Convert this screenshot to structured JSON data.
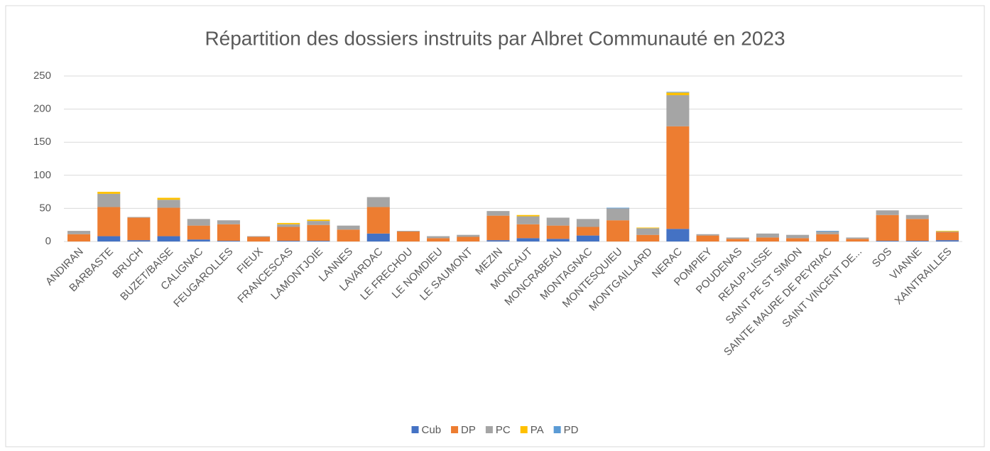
{
  "chart_data": {
    "type": "stacked_bar",
    "title": "Répartition des dossiers instruits par Albret Communauté en 2023",
    "categories": [
      "ANDIRAN",
      "BARBASTE",
      "BRUCH",
      "BUZET/BAISE",
      "CALIGNAC",
      "FEUGAROLLES",
      "FIEUX",
      "FRANCESCAS",
      "LAMONTJOIE",
      "LANNES",
      "LAVARDAC",
      "LE FRECHOU",
      "LE NOMDIEU",
      "LE SAUMONT",
      "MEZIN",
      "MONCAUT",
      "MONCRABEAU",
      "MONTAGNAC",
      "MONTESQUIEU",
      "MONTGAILLARD",
      "NERAC",
      "POMPIEY",
      "POUDENAS",
      "REAUP-LISSE",
      "SAINT PE ST SIMON",
      "SAINTE MAURE DE PEYRIAC",
      "SAINT VINCENT DE...",
      "SOS",
      "VIANNE",
      "XAINTRAILLES"
    ],
    "series": [
      {
        "name": "Cub",
        "color": "#4472c4",
        "values": [
          0,
          8,
          2,
          8,
          3,
          1,
          0,
          1,
          1,
          0,
          12,
          0,
          0,
          0,
          2,
          5,
          4,
          9,
          0,
          0,
          19,
          0,
          0,
          0,
          0,
          0,
          0,
          1,
          1,
          2
        ]
      },
      {
        "name": "DP",
        "color": "#ed7d31",
        "values": [
          11,
          44,
          34,
          43,
          21,
          25,
          7,
          21,
          24,
          18,
          40,
          15,
          5,
          7,
          37,
          21,
          20,
          13,
          32,
          10,
          155,
          9,
          4,
          6,
          5,
          11,
          4,
          39,
          33,
          12
        ]
      },
      {
        "name": "PC",
        "color": "#a5a5a5",
        "values": [
          5,
          20,
          1,
          12,
          10,
          6,
          1,
          4,
          6,
          6,
          15,
          1,
          3,
          3,
          7,
          12,
          12,
          12,
          18,
          10,
          47,
          2,
          2,
          6,
          5,
          4,
          2,
          7,
          6,
          1
        ]
      },
      {
        "name": "PA",
        "color": "#ffc000",
        "values": [
          0,
          3,
          0,
          3,
          0,
          0,
          0,
          2,
          2,
          0,
          0,
          0,
          0,
          0,
          0,
          2,
          0,
          0,
          0,
          1,
          4,
          0,
          0,
          0,
          0,
          0,
          0,
          0,
          0,
          1
        ]
      },
      {
        "name": "PD",
        "color": "#5b9bd5",
        "values": [
          0,
          0,
          0,
          0,
          0,
          0,
          0,
          0,
          0,
          0,
          0,
          0,
          0,
          0,
          0,
          0,
          0,
          0,
          1,
          0,
          1,
          0,
          0,
          0,
          0,
          1,
          0,
          0,
          0,
          0
        ]
      }
    ],
    "ylim": [
      0,
      250
    ],
    "yticks": [
      0,
      50,
      100,
      150,
      200,
      250
    ],
    "grid": true,
    "legend": "bottom"
  }
}
